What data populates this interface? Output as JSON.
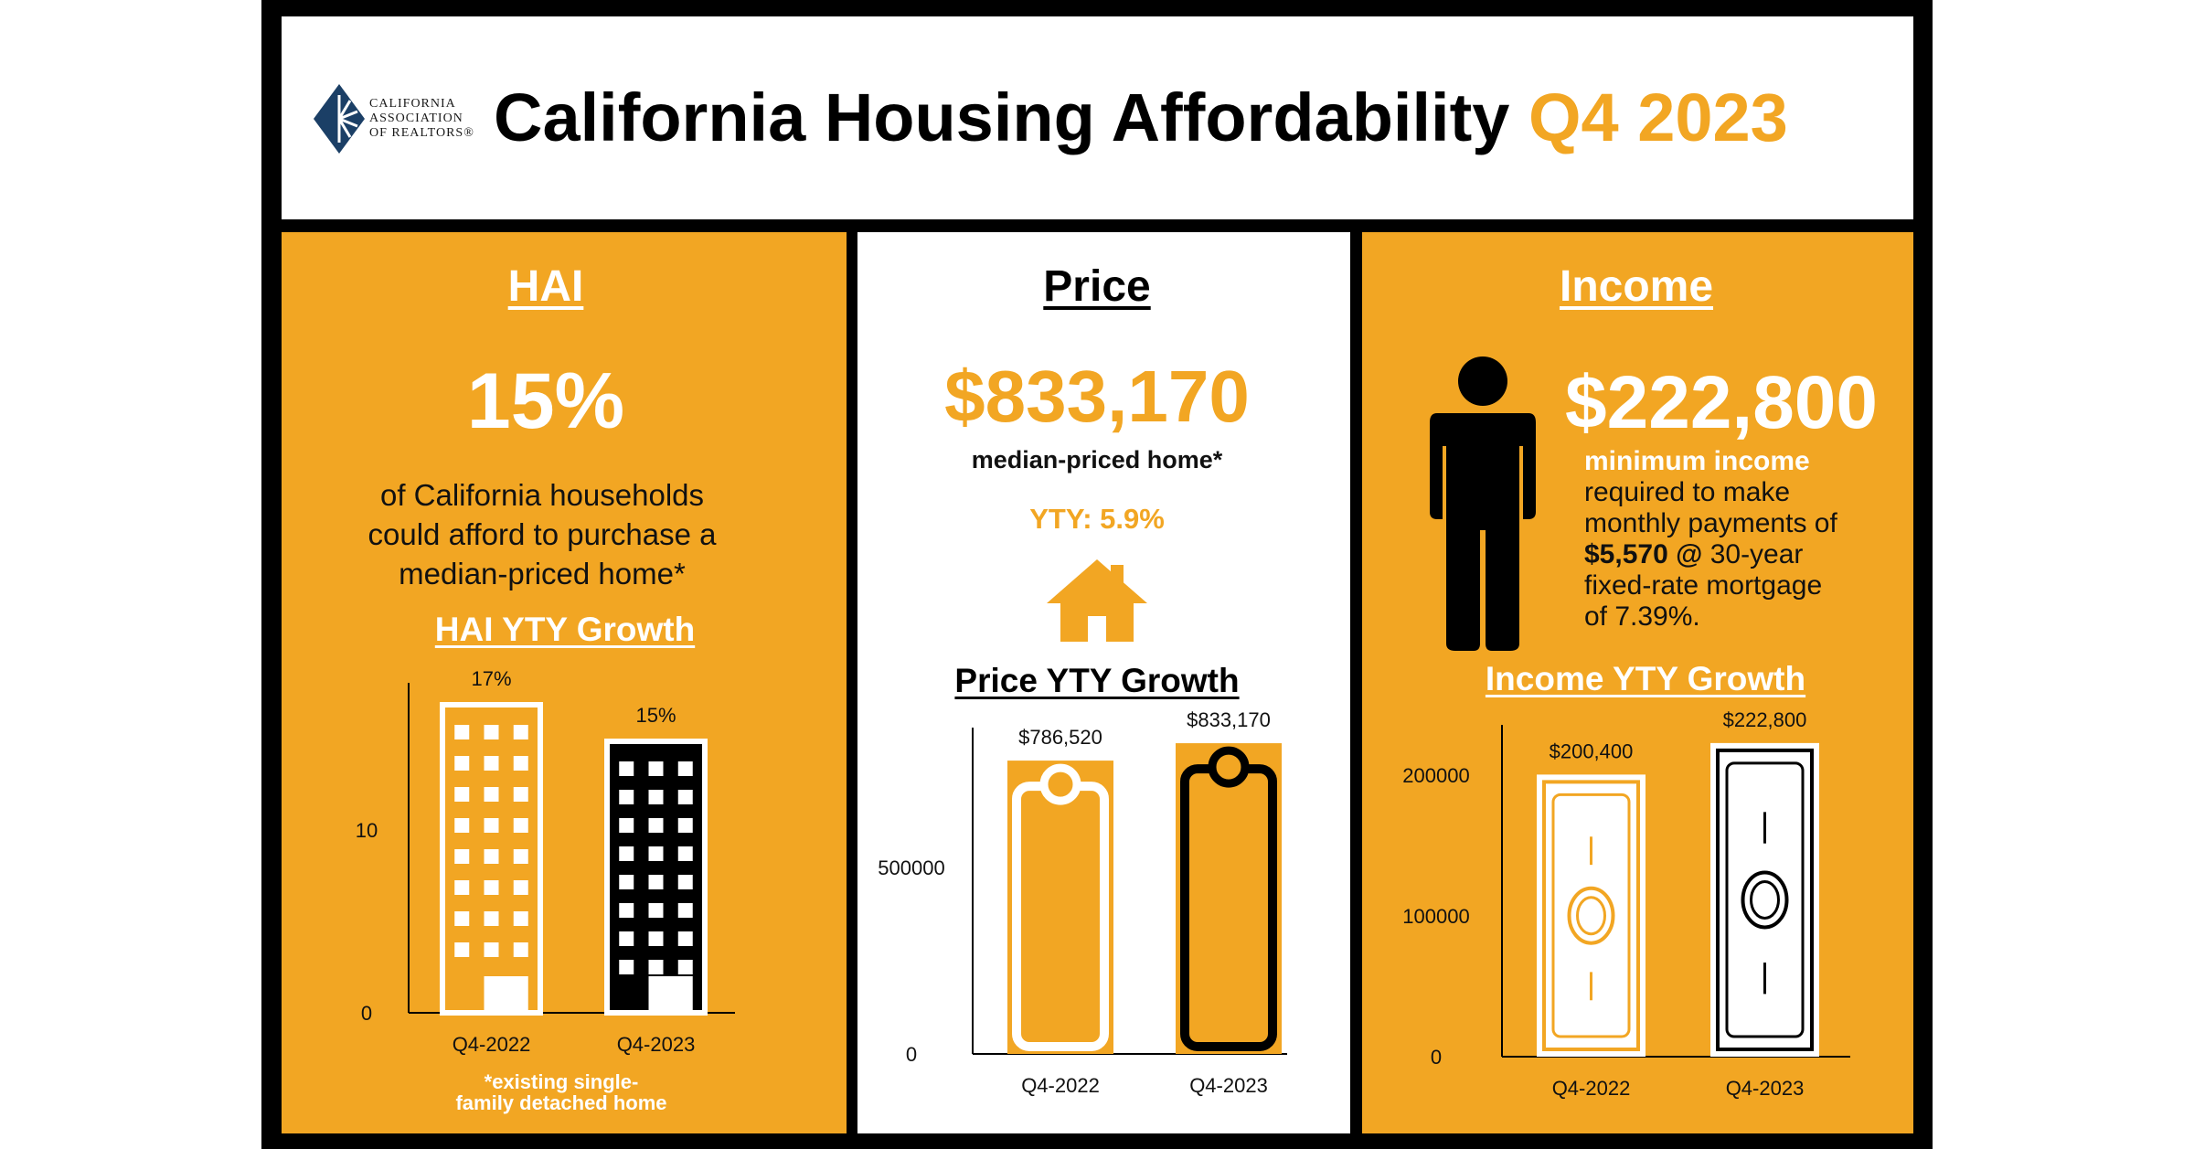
{
  "header": {
    "logo_lines": [
      "CALIFORNIA",
      "ASSOCIATION",
      "OF REALTORS®"
    ],
    "title": "California Housing Affordability",
    "period": "Q4 2023"
  },
  "colors": {
    "orange": "#F2A623",
    "black": "#000000",
    "white": "#FFFFFF",
    "logo_blue": "#1B3F66"
  },
  "hai": {
    "title": "HAI",
    "value": "15%",
    "desc_lines": [
      "of California households",
      "could afford to purchase a",
      "median-priced home*"
    ],
    "footnote_lines": [
      "*existing single-",
      "family detached home"
    ]
  },
  "price": {
    "title": "Price",
    "value": "$833,170",
    "desc": "median-priced home*",
    "yty": "YTY: 5.9%",
    "icon": "house-icon"
  },
  "income": {
    "title": "Income",
    "value": "$222,800",
    "icon": "person-icon",
    "desc_highlight": "minimum income",
    "desc_lines": [
      "required to make",
      "monthly payments of"
    ],
    "payment_bold": "$5,570 @",
    "payment_rest": " 30-year",
    "desc_lines2": [
      "fixed-rate mortgage",
      "of 7.39%."
    ]
  },
  "chart_data": [
    {
      "type": "bar",
      "title": "HAI YTY Growth",
      "categories": [
        "Q4-2022",
        "Q4-2023"
      ],
      "values": [
        17,
        15
      ],
      "data_labels": [
        "17%",
        "15%"
      ],
      "yticks": [
        0,
        10
      ],
      "ytick_labels": [
        "0",
        "10"
      ],
      "ylim": [
        0,
        18
      ],
      "grid": false,
      "bar_icon": "building-icon"
    },
    {
      "type": "bar",
      "title": "Price YTY Growth",
      "categories": [
        "Q4-2022",
        "Q4-2023"
      ],
      "values": [
        786520,
        833170
      ],
      "data_labels": [
        "$786,520",
        "$833,170"
      ],
      "yticks": [
        0,
        500000
      ],
      "ytick_labels": [
        "0",
        "500000"
      ],
      "ylim": [
        0,
        875000
      ],
      "grid": false,
      "bar_icon": "price-tag-icon"
    },
    {
      "type": "bar",
      "title": "Income YTY Growth",
      "categories": [
        "Q4-2022",
        "Q4-2023"
      ],
      "values": [
        200400,
        222800
      ],
      "data_labels": [
        "$200,400",
        "$222,800"
      ],
      "yticks": [
        0,
        100000,
        200000
      ],
      "ytick_labels": [
        "0",
        "100000",
        "200000"
      ],
      "ylim": [
        0,
        235000
      ],
      "grid": false,
      "bar_icon": "dollar-bill-icon"
    }
  ]
}
